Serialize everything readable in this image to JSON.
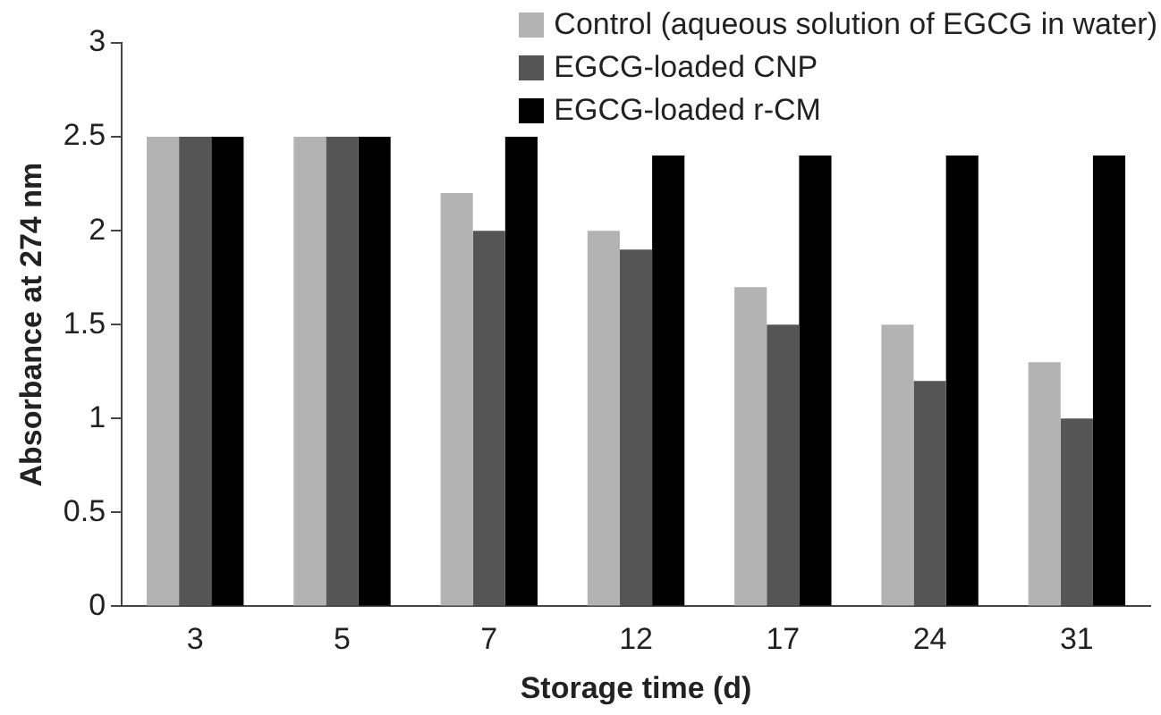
{
  "chart_data": {
    "type": "bar",
    "xlabel": "Storage time (d)",
    "ylabel": "Absorbance at 274 nm",
    "categories": [
      "3",
      "5",
      "7",
      "12",
      "17",
      "24",
      "31"
    ],
    "series": [
      {
        "name": "Control (aqueous solution of EGCG in water)",
        "color": "#b3b3b3",
        "values": [
          2.5,
          2.5,
          2.2,
          2.0,
          1.7,
          1.5,
          1.3
        ]
      },
      {
        "name": "EGCG-loaded CNP",
        "color": "#555555",
        "values": [
          2.5,
          2.5,
          2.0,
          1.9,
          1.5,
          1.2,
          1.0
        ]
      },
      {
        "name": "EGCG-loaded r-CM",
        "color": "#000000",
        "values": [
          2.5,
          2.5,
          2.5,
          2.4,
          2.4,
          2.4,
          2.4
        ]
      }
    ],
    "ylim": [
      0,
      3
    ],
    "yticks": [
      0,
      0.5,
      1,
      1.5,
      2,
      2.5,
      3
    ],
    "grid": false,
    "legend": "top right"
  }
}
